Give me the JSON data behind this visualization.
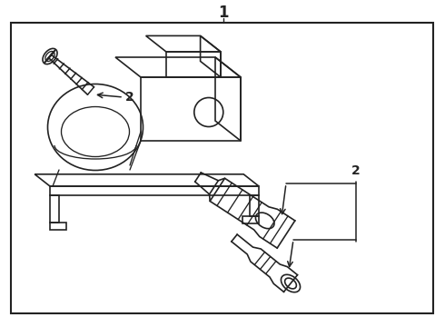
{
  "bg_color": "#ffffff",
  "line_color": "#222222",
  "fig_width": 4.9,
  "fig_height": 3.6,
  "dpi": 100,
  "title": "1",
  "label2": "2",
  "border": [
    12,
    25,
    477,
    345
  ]
}
